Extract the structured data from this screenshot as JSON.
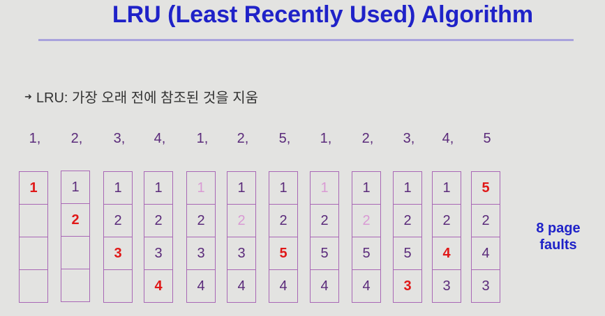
{
  "title": "LRU (Least Recently Used) Algorithm",
  "bullet": {
    "icon": "arrow-bullet-icon",
    "text": "LRU: 가장 오래 전에 참조된 것을 지움"
  },
  "reference_string": [
    "1,",
    "2,",
    "3,",
    "4,",
    "1,",
    "2,",
    "5,",
    "1,",
    "2,",
    "3,",
    "4,",
    "5"
  ],
  "frames": [
    [
      {
        "v": "1",
        "s": "fault"
      },
      {
        "v": "",
        "s": "normal"
      },
      {
        "v": "",
        "s": "normal"
      },
      {
        "v": "",
        "s": "normal"
      }
    ],
    [
      {
        "v": "1",
        "s": "normal"
      },
      {
        "v": "2",
        "s": "fault"
      },
      {
        "v": "",
        "s": "normal"
      },
      {
        "v": "",
        "s": "normal"
      }
    ],
    [
      {
        "v": "1",
        "s": "normal"
      },
      {
        "v": "2",
        "s": "normal"
      },
      {
        "v": "3",
        "s": "fault"
      },
      {
        "v": "",
        "s": "normal"
      }
    ],
    [
      {
        "v": "1",
        "s": "normal"
      },
      {
        "v": "2",
        "s": "normal"
      },
      {
        "v": "3",
        "s": "normal"
      },
      {
        "v": "4",
        "s": "fault"
      }
    ],
    [
      {
        "v": "1",
        "s": "hit"
      },
      {
        "v": "2",
        "s": "normal"
      },
      {
        "v": "3",
        "s": "normal"
      },
      {
        "v": "4",
        "s": "normal"
      }
    ],
    [
      {
        "v": "1",
        "s": "normal"
      },
      {
        "v": "2",
        "s": "hit"
      },
      {
        "v": "3",
        "s": "normal"
      },
      {
        "v": "4",
        "s": "normal"
      }
    ],
    [
      {
        "v": "1",
        "s": "normal"
      },
      {
        "v": "2",
        "s": "normal"
      },
      {
        "v": "5",
        "s": "fault"
      },
      {
        "v": "4",
        "s": "normal"
      }
    ],
    [
      {
        "v": "1",
        "s": "hit"
      },
      {
        "v": "2",
        "s": "normal"
      },
      {
        "v": "5",
        "s": "normal"
      },
      {
        "v": "4",
        "s": "normal"
      }
    ],
    [
      {
        "v": "1",
        "s": "normal"
      },
      {
        "v": "2",
        "s": "hit"
      },
      {
        "v": "5",
        "s": "normal"
      },
      {
        "v": "4",
        "s": "normal"
      }
    ],
    [
      {
        "v": "1",
        "s": "normal"
      },
      {
        "v": "2",
        "s": "normal"
      },
      {
        "v": "5",
        "s": "normal"
      },
      {
        "v": "3",
        "s": "fault"
      }
    ],
    [
      {
        "v": "1",
        "s": "normal"
      },
      {
        "v": "2",
        "s": "normal"
      },
      {
        "v": "4",
        "s": "fault"
      },
      {
        "v": "3",
        "s": "normal"
      }
    ],
    [
      {
        "v": "5",
        "s": "fault"
      },
      {
        "v": "2",
        "s": "normal"
      },
      {
        "v": "4",
        "s": "normal"
      },
      {
        "v": "3",
        "s": "normal"
      }
    ]
  ],
  "faults": {
    "line1": "8 page",
    "line2": "faults"
  },
  "colors": {
    "title": "#1f22c8",
    "fault": "#e01818",
    "hit": "#d99ad4",
    "normal": "#5a2a7a",
    "frame_border": "#a867b5"
  }
}
